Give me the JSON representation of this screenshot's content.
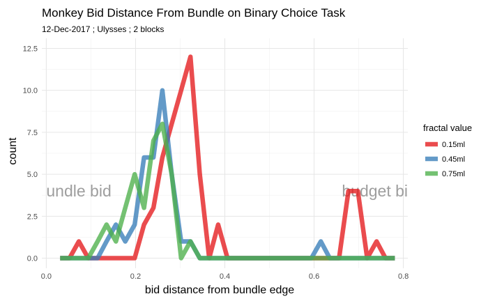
{
  "chart_data": {
    "type": "line",
    "title": "Monkey Bid Distance From Bundle on Binary Choice Task",
    "subtitle": "12-Dec-2017 ; Ulysses ; 2 blocks",
    "xlabel": "bid distance from bundle edge",
    "ylabel": "count",
    "xlim": [
      -0.01,
      0.81
    ],
    "ylim": [
      -0.6,
      13.1
    ],
    "xticks": [
      0.0,
      0.2,
      0.4,
      0.6,
      0.8
    ],
    "xtick_labels": [
      "0.0",
      "0.2",
      "0.4",
      "0.6",
      "0.8"
    ],
    "yticks": [
      0.0,
      2.5,
      5.0,
      7.5,
      10.0,
      12.5
    ],
    "ytick_labels": [
      "0.0",
      "2.5",
      "5.0",
      "7.5",
      "10.0",
      "12.5"
    ],
    "grid": true,
    "legend": {
      "title": "fractal value",
      "position": "right"
    },
    "annotations": [
      {
        "text": "undle bid",
        "x": 0.0,
        "y": 4.0,
        "anchor": "start"
      },
      {
        "text": "budget bi",
        "x": 0.81,
        "y": 4.0,
        "anchor": "end"
      }
    ],
    "series": [
      {
        "name": "0.15ml",
        "color": "#e41a1c",
        "x": [
          0.031,
          0.052,
          0.073,
          0.094,
          0.115,
          0.135,
          0.156,
          0.177,
          0.198,
          0.219,
          0.24,
          0.26,
          0.281,
          0.302,
          0.323,
          0.344,
          0.365,
          0.385,
          0.406,
          0.427,
          0.448,
          0.469,
          0.49,
          0.51,
          0.531,
          0.552,
          0.573,
          0.594,
          0.615,
          0.635,
          0.656,
          0.677,
          0.698,
          0.719,
          0.74,
          0.76,
          0.781
        ],
        "values": [
          0,
          0,
          1,
          0,
          0,
          0,
          0,
          0,
          0,
          2,
          3,
          6,
          8,
          10,
          12,
          5,
          0,
          2,
          0,
          0,
          0,
          0,
          0,
          0,
          0,
          0,
          0,
          0,
          0,
          0,
          0,
          4,
          4,
          0,
          1,
          0,
          0
        ]
      },
      {
        "name": "0.45ml",
        "color": "#377eb8",
        "x": [
          0.031,
          0.052,
          0.073,
          0.094,
          0.115,
          0.135,
          0.156,
          0.177,
          0.198,
          0.219,
          0.24,
          0.26,
          0.281,
          0.302,
          0.323,
          0.344,
          0.365,
          0.385,
          0.406,
          0.427,
          0.448,
          0.469,
          0.49,
          0.51,
          0.531,
          0.552,
          0.573,
          0.594,
          0.615,
          0.635,
          0.656,
          0.677,
          0.698,
          0.719,
          0.74,
          0.76,
          0.781
        ],
        "values": [
          0,
          0,
          0,
          0,
          0,
          1,
          2,
          1,
          2,
          6,
          6,
          10,
          5,
          1,
          1,
          0,
          0,
          0,
          0,
          0,
          0,
          0,
          0,
          0,
          0,
          0,
          0,
          0,
          1,
          0,
          0,
          0,
          0,
          0,
          0,
          0,
          0
        ]
      },
      {
        "name": "0.75ml",
        "color": "#4daf4a",
        "x": [
          0.031,
          0.052,
          0.073,
          0.094,
          0.115,
          0.135,
          0.156,
          0.177,
          0.198,
          0.219,
          0.24,
          0.26,
          0.281,
          0.302,
          0.323,
          0.344,
          0.365,
          0.385,
          0.406,
          0.427,
          0.448,
          0.469,
          0.49,
          0.51,
          0.531,
          0.552,
          0.573,
          0.594,
          0.615,
          0.635,
          0.656,
          0.677,
          0.698,
          0.719,
          0.74,
          0.76,
          0.781
        ],
        "values": [
          0,
          0,
          0,
          0,
          1,
          2,
          1,
          3,
          5,
          3,
          7,
          8,
          5,
          0,
          1,
          0,
          0,
          0,
          0,
          0,
          0,
          0,
          0,
          0,
          0,
          0,
          0,
          0,
          0,
          0,
          0,
          0,
          0,
          0,
          0,
          0,
          0
        ]
      }
    ]
  }
}
